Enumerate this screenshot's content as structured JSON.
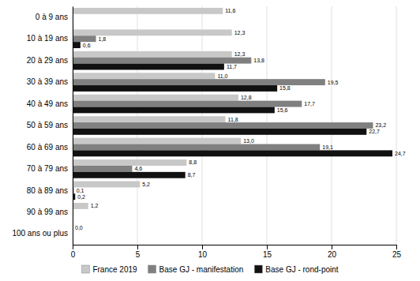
{
  "chart_data": {
    "type": "bar",
    "orientation": "horizontal",
    "categories": [
      "0 à 9 ans",
      "10 à 19 ans",
      "20 à 29 ans",
      "30 à 39 ans",
      "40 à 49 ans",
      "50 à 59 ans",
      "60 à 69 ans",
      "70 à 79 ans",
      "80 à 89 ans",
      "90 à 99 ans",
      "100 ans ou plus"
    ],
    "series": [
      {
        "name": "France 2019",
        "color": "#c8c8c8",
        "values": [
          11.6,
          12.3,
          12.3,
          11.0,
          12.8,
          11.8,
          13.0,
          8.8,
          5.2,
          1.2,
          0.0
        ],
        "value_labels": [
          "11,6",
          "12,3",
          "12,3",
          "11,0",
          "12,8",
          "11,8",
          "13,0",
          "8,8",
          "5,2",
          "1,2",
          "0,0"
        ]
      },
      {
        "name": "Base GJ - manifestation",
        "color": "#808080",
        "values": [
          0.0,
          1.8,
          13.8,
          19.5,
          17.7,
          23.2,
          19.1,
          4.6,
          0.1,
          0.0,
          0.0
        ],
        "value_labels": [
          null,
          "1,8",
          "13,8",
          "19,5",
          "17,7",
          "23,2",
          "19,1",
          "4,6",
          "0,1",
          null,
          null
        ]
      },
      {
        "name": "Base GJ - rond-point",
        "color": "#111111",
        "values": [
          0.0,
          0.6,
          11.7,
          15.8,
          15.6,
          22.7,
          24.7,
          8.7,
          0.2,
          0.0,
          0.0
        ],
        "value_labels": [
          null,
          "0,6",
          "11,7",
          "15,8",
          "15,6",
          "22,7",
          "24,7",
          "8,7",
          "0,2",
          null,
          null
        ]
      }
    ],
    "xlim": [
      0,
      25
    ],
    "xticks": [
      0,
      5,
      10,
      15,
      20,
      25
    ],
    "grid": true,
    "legend": "bottom",
    "data_labels": true
  }
}
